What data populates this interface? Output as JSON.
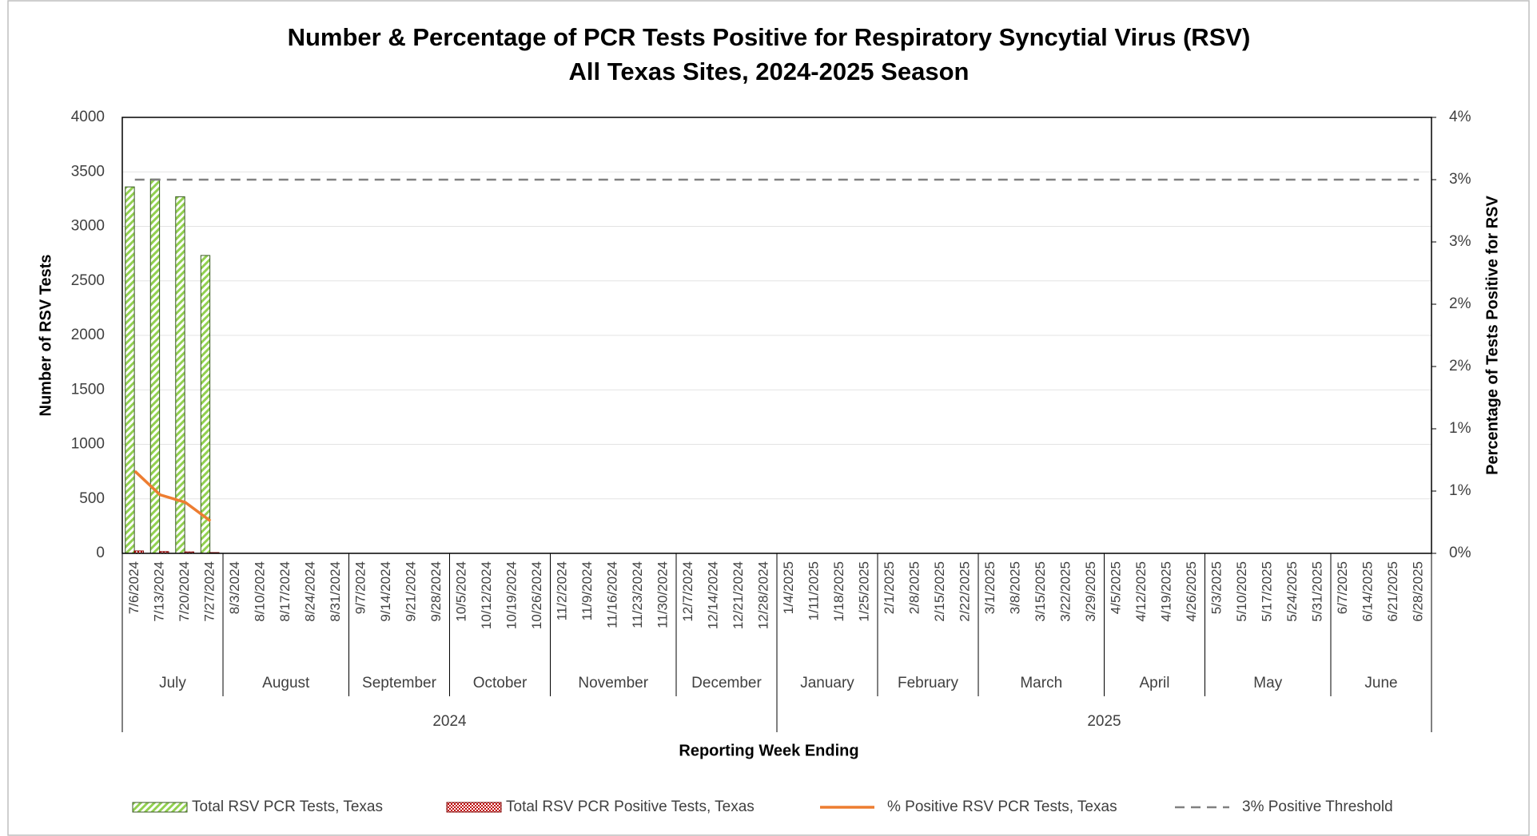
{
  "chart_data": {
    "type": "bar",
    "title": "Number & Percentage of PCR Tests Positive for Respiratory Syncytial Virus (RSV)",
    "subtitle": "All Texas Sites, 2024-2025 Season",
    "x_label": "Reporting Week Ending",
    "y_label": "Number of RSV Tests",
    "y2_label": "Percentage of Tests Positive for RSV",
    "categories": [
      "7/6/2024",
      "7/13/2024",
      "7/20/2024",
      "7/27/2024",
      "8/3/2024",
      "8/10/2024",
      "8/17/2024",
      "8/24/2024",
      "8/31/2024",
      "9/7/2024",
      "9/14/2024",
      "9/21/2024",
      "9/28/2024",
      "10/5/2024",
      "10/12/2024",
      "10/19/2024",
      "10/26/2024",
      "11/2/2024",
      "11/9/2024",
      "11/16/2024",
      "11/23/2024",
      "11/30/2024",
      "12/7/2024",
      "12/14/2024",
      "12/21/2024",
      "12/28/2024",
      "1/4/2025",
      "1/11/2025",
      "1/18/2025",
      "1/25/2025",
      "2/1/2025",
      "2/8/2025",
      "2/15/2025",
      "2/22/2025",
      "3/1/2025",
      "3/8/2025",
      "3/15/2025",
      "3/22/2025",
      "3/29/2025",
      "4/5/2025",
      "4/12/2025",
      "4/19/2025",
      "4/26/2025",
      "5/3/2025",
      "5/10/2025",
      "5/17/2025",
      "5/24/2025",
      "5/31/2025",
      "6/7/2025",
      "6/14/2025",
      "6/21/2025",
      "6/28/2025"
    ],
    "months": [
      "July",
      "August",
      "September",
      "October",
      "November",
      "December",
      "January",
      "February",
      "March",
      "April",
      "May",
      "June"
    ],
    "years": [
      "2024",
      "2025"
    ],
    "series": [
      {
        "name": "Total RSV PCR Tests, Texas",
        "type": "bar",
        "color": "#92d050",
        "values": [
          3362,
          3434,
          3272,
          2733,
          null,
          null,
          null,
          null,
          null,
          null,
          null,
          null,
          null,
          null,
          null,
          null,
          null,
          null,
          null,
          null,
          null,
          null,
          null,
          null,
          null,
          null,
          null,
          null,
          null,
          null,
          null,
          null,
          null,
          null,
          null,
          null,
          null,
          null,
          null,
          null,
          null,
          null,
          null,
          null,
          null,
          null,
          null,
          null,
          null,
          null,
          null,
          null
        ]
      },
      {
        "name": "Total RSV PCR Positive Tests, Texas",
        "type": "bar",
        "color": "#c00000",
        "values": [
          22,
          16,
          13,
          7,
          null,
          null,
          null,
          null,
          null,
          null,
          null,
          null,
          null,
          null,
          null,
          null,
          null,
          null,
          null,
          null,
          null,
          null,
          null,
          null,
          null,
          null,
          null,
          null,
          null,
          null,
          null,
          null,
          null,
          null,
          null,
          null,
          null,
          null,
          null,
          null,
          null,
          null,
          null,
          null,
          null,
          null,
          null,
          null,
          null,
          null,
          null,
          null
        ]
      },
      {
        "name": "% Positive RSV PCR Tests, Texas",
        "type": "line",
        "axis": "y2",
        "color": "#ed7d31",
        "values": [
          0.66,
          0.47,
          0.41,
          0.26,
          null,
          null,
          null,
          null,
          null,
          null,
          null,
          null,
          null,
          null,
          null,
          null,
          null,
          null,
          null,
          null,
          null,
          null,
          null,
          null,
          null,
          null,
          null,
          null,
          null,
          null,
          null,
          null,
          null,
          null,
          null,
          null,
          null,
          null,
          null,
          null,
          null,
          null,
          null,
          null,
          null,
          null,
          null,
          null,
          null,
          null,
          null,
          null
        ]
      },
      {
        "name": "3% Positive Threshold",
        "type": "line",
        "axis": "y2",
        "color": "#808080",
        "dashed": true,
        "values": [
          3,
          3,
          3,
          3,
          3,
          3,
          3,
          3,
          3,
          3,
          3,
          3,
          3,
          3,
          3,
          3,
          3,
          3,
          3,
          3,
          3,
          3,
          3,
          3,
          3,
          3,
          3,
          3,
          3,
          3,
          3,
          3,
          3,
          3,
          3,
          3,
          3,
          3,
          3,
          3,
          3,
          3,
          3,
          3,
          3,
          3,
          3,
          3,
          3,
          3,
          3,
          3
        ]
      }
    ],
    "ylim": [
      0,
      4000
    ],
    "yticks": [
      0,
      500,
      1000,
      1500,
      2000,
      2500,
      3000,
      3500,
      4000
    ],
    "y2lim": [
      0,
      3.5
    ],
    "y2ticks": [
      {
        "value": 0,
        "label": "0%"
      },
      {
        "value": 0.5,
        "label": "1%"
      },
      {
        "value": 1,
        "label": "1%"
      },
      {
        "value": 1.5,
        "label": "2%"
      },
      {
        "value": 2,
        "label": "2%"
      },
      {
        "value": 2.5,
        "label": "3%"
      },
      {
        "value": 3,
        "label": "3%"
      },
      {
        "value": 3.5,
        "label": "4%"
      }
    ],
    "grid": true,
    "legend": "bottom"
  }
}
